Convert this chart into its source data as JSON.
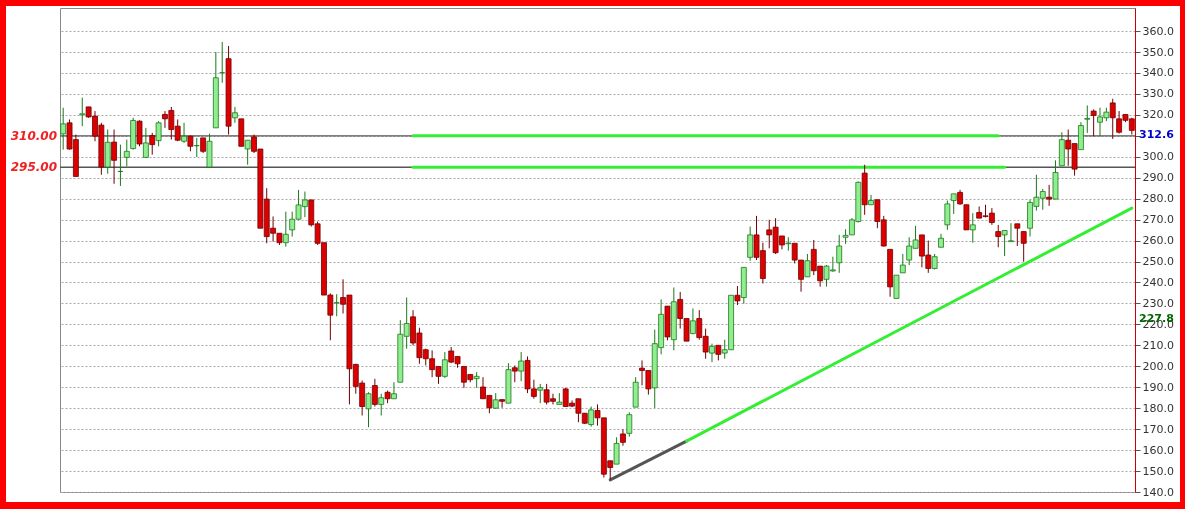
{
  "chart_data": {
    "type": "candlestick",
    "categories": [
      null,
      null,
      null,
      null,
      null,
      null,
      null,
      null,
      null,
      null,
      null,
      null,
      null,
      null,
      null,
      null,
      null,
      null,
      null,
      null,
      null,
      null,
      null,
      null,
      null,
      null,
      null,
      null,
      null,
      null,
      null,
      null,
      null,
      null,
      null,
      null,
      null,
      null,
      null,
      null,
      null,
      null,
      null,
      null,
      null,
      null,
      null,
      null,
      null,
      null,
      null,
      null,
      null,
      null,
      null,
      null,
      null,
      null,
      null,
      null,
      null,
      null,
      null,
      null,
      null,
      null,
      null,
      null,
      null,
      null,
      null,
      null,
      null,
      null,
      null,
      null,
      null,
      null,
      null,
      null,
      null,
      null,
      null,
      null,
      null,
      null,
      null,
      null,
      null,
      null,
      null,
      null,
      null,
      null,
      null,
      null,
      null,
      null,
      null,
      null,
      null,
      null,
      null,
      null,
      null,
      null,
      null,
      null,
      null,
      null,
      null,
      null,
      null,
      null,
      null,
      null,
      null,
      null,
      null,
      null,
      null,
      null,
      null,
      null,
      null,
      null,
      null,
      null,
      null,
      null,
      null,
      null,
      null,
      null,
      null,
      null,
      null,
      null,
      null,
      null,
      null,
      null,
      null,
      null,
      null,
      null,
      null,
      null,
      null,
      null,
      null,
      null,
      null,
      null,
      null,
      null,
      null,
      null,
      null,
      null,
      null,
      null,
      null,
      null,
      null,
      null,
      null,
      null,
      null
    ],
    "ohlc": [
      [
        310.9,
        323.4,
        303.4,
        315.7
      ],
      [
        316.2,
        317.8,
        303.4,
        303.7
      ],
      [
        308.2,
        310.6,
        290.6,
        290.6
      ],
      [
        320,
        328.2,
        314.6,
        320.5
      ],
      [
        323.8,
        323.8,
        318.6,
        319
      ],
      [
        319.4,
        321.8,
        307.4,
        309.8
      ],
      [
        315.1,
        316.2,
        291.4,
        295.1
      ],
      [
        295.1,
        313,
        291.9,
        306.9
      ],
      [
        307,
        313,
        287.1,
        298.3
      ],
      [
        293,
        305.8,
        286.1,
        293
      ],
      [
        299.7,
        308.2,
        295.4,
        302.6
      ],
      [
        303.9,
        318.6,
        303.4,
        317.3
      ],
      [
        317,
        317.4,
        305,
        306.1
      ],
      [
        299.7,
        313.8,
        299.4,
        306.6
      ],
      [
        310.1,
        311.4,
        301,
        305.8
      ],
      [
        307.7,
        317,
        305,
        316.2
      ],
      [
        320.2,
        321.8,
        313.8,
        318.1
      ],
      [
        322.1,
        323.8,
        308.2,
        313
      ],
      [
        314.6,
        317.8,
        307.4,
        307.9
      ],
      [
        307.4,
        316.2,
        306.6,
        309.8
      ],
      [
        309.8,
        310.1,
        302.6,
        305
      ],
      [
        305.3,
        309,
        299.9,
        305.3
      ],
      [
        309,
        309,
        301.8,
        302.6
      ],
      [
        295.1,
        311,
        295.1,
        307.4
      ],
      [
        313.8,
        350,
        313.8,
        337.7
      ],
      [
        340.1,
        354.8,
        335.3,
        340.1
      ],
      [
        346.8,
        352.9,
        310.6,
        314.6
      ],
      [
        318.6,
        323.8,
        316.2,
        321
      ],
      [
        318.1,
        318.1,
        305,
        305
      ],
      [
        303.7,
        307.9,
        296.2,
        307.9
      ],
      [
        309.5,
        310.6,
        301.8,
        302.6
      ],
      [
        303.7,
        303.7,
        265.9,
        265.9
      ],
      [
        279.8,
        285,
        258.7,
        261.9
      ],
      [
        265.9,
        271.5,
        259.5,
        263.5
      ],
      [
        263.5,
        263.5,
        257.9,
        259
      ],
      [
        259,
        273.8,
        257.1,
        263
      ],
      [
        265.1,
        273.8,
        261.9,
        270.2
      ],
      [
        270.2,
        284.2,
        269.9,
        277
      ],
      [
        276.2,
        283.4,
        271.2,
        279.4
      ],
      [
        279.4,
        279.4,
        266.7,
        267.5
      ],
      [
        268,
        269.1,
        257.9,
        258.7
      ],
      [
        259,
        259,
        234,
        234
      ],
      [
        234,
        234.8,
        212.4,
        224.4
      ],
      [
        230.3,
        234.4,
        223.9,
        230.3
      ],
      [
        232.8,
        241.5,
        225.2,
        229.6
      ],
      [
        234,
        234,
        181.8,
        198.8
      ],
      [
        200.9,
        201.2,
        186.9,
        190.4
      ],
      [
        192,
        193.2,
        176.5,
        180.8
      ],
      [
        179.7,
        187.6,
        170.9,
        186.9
      ],
      [
        190.8,
        194,
        180.8,
        181.8
      ],
      [
        181.8,
        186.9,
        176.5,
        185
      ],
      [
        187.6,
        188.4,
        182.4,
        184.5
      ],
      [
        184.5,
        192.4,
        184.5,
        186.9
      ],
      [
        192.4,
        222,
        192.4,
        215.3
      ],
      [
        214.3,
        232.8,
        208.4,
        220.4
      ],
      [
        223.6,
        226.8,
        210,
        211.1
      ],
      [
        215.9,
        218.4,
        201.2,
        204.1
      ],
      [
        207.9,
        208.4,
        200.4,
        203.6
      ],
      [
        203.6,
        207.6,
        194.8,
        198.4
      ],
      [
        199.9,
        199.9,
        191.6,
        195.2
      ],
      [
        195.2,
        206.8,
        194.5,
        203.1
      ],
      [
        207.3,
        209.2,
        201.5,
        202
      ],
      [
        204.7,
        204.7,
        199.3,
        201.2
      ],
      [
        199.9,
        199.9,
        189.7,
        192.4
      ],
      [
        196.1,
        196.1,
        192.4,
        193.6
      ],
      [
        194.1,
        197.2,
        189.7,
        195.2
      ],
      [
        190.1,
        194.8,
        184.5,
        184.5
      ],
      [
        186.1,
        186.1,
        177.6,
        180.2
      ],
      [
        180,
        187.2,
        179.7,
        184
      ],
      [
        184.1,
        184.1,
        180.2,
        183.3
      ],
      [
        182.4,
        201.5,
        182.4,
        198.4
      ],
      [
        199.3,
        200.4,
        192.4,
        197.7
      ],
      [
        197.7,
        206.8,
        192.9,
        202.5
      ],
      [
        202.8,
        204.7,
        187.2,
        189.2
      ],
      [
        189.2,
        193.6,
        184.5,
        185.6
      ],
      [
        188.6,
        191.6,
        182.4,
        189.8
      ],
      [
        188.8,
        191.6,
        181.8,
        182.9
      ],
      [
        184.5,
        186.9,
        181.8,
        183.3
      ],
      [
        181.8,
        187.2,
        181.8,
        182.9
      ],
      [
        189.2,
        189.7,
        180.8,
        180.8
      ],
      [
        182.4,
        183.7,
        180.5,
        181
      ],
      [
        184.5,
        184.5,
        173.3,
        177.6
      ],
      [
        177.6,
        177.6,
        172.5,
        172.8
      ],
      [
        172.2,
        180.8,
        171.2,
        179.2
      ],
      [
        178.9,
        181.8,
        171.7,
        175.4
      ],
      [
        175.4,
        175.4,
        146.9,
        148.5
      ],
      [
        154.9,
        154.9,
        146.1,
        151.7
      ],
      [
        153.3,
        166.1,
        153.3,
        163.2
      ],
      [
        167.7,
        170,
        162.1,
        163.7
      ],
      [
        168,
        178,
        166.4,
        176.9
      ],
      [
        180.5,
        194.8,
        180.5,
        192.4
      ],
      [
        199.1,
        202.8,
        190.9,
        198
      ],
      [
        198,
        198,
        186.5,
        189.2
      ],
      [
        189.7,
        217.5,
        180.1,
        210.8
      ],
      [
        208.9,
        231.9,
        205.7,
        224.8
      ],
      [
        228.7,
        228.7,
        212.4,
        214
      ],
      [
        212.7,
        237.6,
        207.6,
        230.8
      ],
      [
        231.9,
        235.5,
        218,
        222.8
      ],
      [
        222.8,
        222.8,
        212,
        212
      ],
      [
        215.6,
        227.6,
        215.3,
        221.7
      ],
      [
        222.8,
        226.8,
        212.7,
        213.7
      ],
      [
        214.3,
        218,
        203.6,
        206.8
      ],
      [
        206.3,
        210.8,
        202,
        209.5
      ],
      [
        210,
        210,
        202.8,
        205.7
      ],
      [
        206.3,
        212.7,
        203.6,
        207.9
      ],
      [
        207.9,
        233.9,
        207.9,
        233.9
      ],
      [
        233.9,
        238.3,
        229.2,
        231.2
      ],
      [
        232.8,
        247.2,
        229.9,
        247.2
      ],
      [
        252,
        266.7,
        250.4,
        262.7
      ],
      [
        262.7,
        271.8,
        250.7,
        252
      ],
      [
        255.2,
        259,
        239.5,
        241.9
      ],
      [
        265.1,
        269.9,
        256.3,
        262.7
      ],
      [
        266.4,
        270.7,
        253.6,
        254.2
      ],
      [
        262.2,
        262.2,
        255.8,
        257.9
      ],
      [
        258.5,
        261.6,
        255.2,
        258.8
      ],
      [
        258.7,
        258.7,
        249.1,
        250.7
      ],
      [
        250.7,
        250.7,
        235.6,
        241.5
      ],
      [
        242.7,
        253.6,
        242.7,
        250.4
      ],
      [
        255.8,
        260.3,
        243.5,
        245.6
      ],
      [
        247.8,
        247.8,
        238,
        240.8
      ],
      [
        241.5,
        248.3,
        238,
        247.8
      ],
      [
        245.5,
        252.3,
        245.1,
        246
      ],
      [
        249.4,
        262.7,
        244.6,
        257.4
      ],
      [
        261.6,
        265.4,
        258.4,
        262.5
      ],
      [
        262.7,
        270.7,
        262.7,
        269.9
      ],
      [
        269.1,
        288.2,
        268.6,
        287.8
      ],
      [
        292.2,
        296.2,
        272.3,
        277.1
      ],
      [
        277.1,
        281.8,
        277,
        279.1
      ],
      [
        279.5,
        279.5,
        265.9,
        269.1
      ],
      [
        269.9,
        271.8,
        257.1,
        257.4
      ],
      [
        255.8,
        255.8,
        233.2,
        237.9
      ],
      [
        232.4,
        243.5,
        232.4,
        243.5
      ],
      [
        244.6,
        253.6,
        244.6,
        248.3
      ],
      [
        250.7,
        261.6,
        248.3,
        257.4
      ],
      [
        256.3,
        267,
        256.3,
        260.3
      ],
      [
        262.7,
        262.7,
        247.2,
        252.6
      ],
      [
        253.1,
        260,
        244.6,
        246.7
      ],
      [
        246.7,
        253.6,
        246.2,
        252.3
      ],
      [
        256.8,
        263.2,
        256.8,
        261.1
      ],
      [
        267.5,
        279.1,
        265.1,
        277.5
      ],
      [
        279.1,
        282.3,
        272.7,
        282.3
      ],
      [
        283,
        284.2,
        277.1,
        277.5
      ],
      [
        277.1,
        277.1,
        265.1,
        265.1
      ],
      [
        265.1,
        273.1,
        259,
        267.5
      ],
      [
        273.4,
        276.3,
        270.7,
        270.7
      ],
      [
        271.8,
        277.1,
        271,
        271.5
      ],
      [
        273.1,
        275.5,
        267.5,
        268.6
      ],
      [
        264.3,
        267.5,
        256.8,
        261.9
      ],
      [
        262.7,
        264.8,
        252.6,
        264.8
      ],
      [
        259.5,
        268.3,
        259.5,
        259.9
      ],
      [
        268,
        268,
        257.4,
        265.9
      ],
      [
        264.3,
        264.3,
        249.9,
        258.7
      ],
      [
        265.9,
        279.5,
        261.9,
        278.2
      ],
      [
        276.3,
        291.4,
        274.3,
        280.7
      ],
      [
        280.2,
        284.6,
        274.7,
        283.4
      ],
      [
        280.7,
        286.6,
        276.6,
        279.8
      ],
      [
        279.8,
        298.3,
        279.8,
        292.5
      ],
      [
        295.7,
        311.7,
        295.7,
        308.2
      ],
      [
        307.9,
        313,
        295.7,
        303.7
      ],
      [
        306.3,
        306.3,
        291,
        294.1
      ],
      [
        303.4,
        316.5,
        303.4,
        314.9
      ],
      [
        317.9,
        324.5,
        311.4,
        318.3
      ],
      [
        321.8,
        322.6,
        309.8,
        319.7
      ],
      [
        316.5,
        323.4,
        309.8,
        319
      ],
      [
        318.6,
        323.4,
        317,
        321.3
      ],
      [
        325.7,
        327.7,
        308.5,
        318.6
      ],
      [
        318.1,
        321.8,
        311.1,
        311.7
      ],
      [
        320.2,
        320.2,
        316.5,
        317.4
      ],
      [
        318.1,
        318.6,
        310.6,
        312.6
      ]
    ],
    "series": [
      {
        "type": "line",
        "color": "#33ee33",
        "values": [
          null,
          null,
          null,
          null,
          null,
          null,
          null,
          null,
          null,
          null,
          null,
          null,
          null,
          null,
          null,
          null,
          null,
          null,
          null,
          null,
          null,
          null,
          null,
          null,
          null,
          null,
          null,
          null,
          null,
          null,
          null,
          null,
          null,
          null,
          null,
          null,
          null,
          null,
          null,
          null,
          null,
          null,
          null,
          null,
          null,
          null,
          null,
          null,
          null,
          null,
          null,
          null,
          null,
          null,
          null,
          310,
          null,
          null,
          null,
          null,
          null,
          null,
          null,
          null,
          null,
          null,
          null,
          null,
          null,
          null,
          null,
          null,
          null,
          null,
          null,
          null,
          null,
          null,
          null,
          null,
          null,
          null,
          null,
          null,
          null,
          null,
          null,
          null,
          null,
          null,
          null,
          null,
          null,
          null,
          null,
          null,
          null,
          null,
          null,
          null,
          null,
          null,
          null,
          null,
          null,
          null,
          null,
          null,
          null,
          null,
          null,
          null,
          null,
          null,
          null,
          null,
          null,
          null,
          null,
          null,
          null,
          null,
          null,
          null,
          null,
          null,
          null,
          null,
          null,
          null,
          null,
          null,
          null,
          null,
          null,
          null,
          null,
          null,
          null,
          null,
          null,
          null,
          null,
          null,
          null,
          null,
          null,
          310,
          null,
          null,
          null,
          null,
          null,
          null,
          null,
          null,
          null,
          null,
          null,
          null,
          null,
          null,
          null,
          null,
          null,
          null,
          null,
          null,
          null
        ]
      },
      {
        "type": "line",
        "color": "#33ee33",
        "values": [
          null,
          null,
          null,
          null,
          null,
          null,
          null,
          null,
          null,
          null,
          null,
          null,
          null,
          null,
          null,
          null,
          null,
          null,
          null,
          null,
          null,
          null,
          null,
          null,
          null,
          null,
          null,
          null,
          null,
          null,
          null,
          null,
          null,
          null,
          null,
          null,
          null,
          null,
          null,
          null,
          null,
          null,
          null,
          null,
          null,
          null,
          null,
          null,
          null,
          null,
          null,
          null,
          null,
          null,
          null,
          295,
          null,
          null,
          null,
          null,
          null,
          null,
          null,
          null,
          null,
          null,
          null,
          null,
          null,
          null,
          null,
          null,
          null,
          null,
          null,
          null,
          null,
          null,
          null,
          null,
          null,
          null,
          null,
          null,
          null,
          null,
          null,
          null,
          null,
          null,
          null,
          null,
          null,
          null,
          null,
          null,
          null,
          null,
          null,
          null,
          null,
          null,
          null,
          null,
          null,
          null,
          null,
          null,
          null,
          null,
          null,
          null,
          null,
          null,
          null,
          null,
          null,
          null,
          null,
          null,
          null,
          null,
          null,
          null,
          null,
          null,
          null,
          null,
          null,
          null,
          null,
          null,
          null,
          null,
          null,
          null,
          null,
          null,
          null,
          null,
          null,
          null,
          null,
          null,
          null,
          null,
          null,
          null,
          295,
          null,
          null,
          null,
          null,
          null,
          null,
          null,
          null,
          null,
          null,
          null,
          null,
          null,
          null,
          null,
          null,
          null,
          null,
          null,
          null
        ]
      },
      {
        "type": "line",
        "color": "#555555",
        "values": [
          null,
          null,
          null,
          null,
          null,
          null,
          null,
          null,
          null,
          null,
          null,
          null,
          null,
          null,
          null,
          null,
          null,
          null,
          null,
          null,
          null,
          null,
          null,
          null,
          null,
          null,
          null,
          null,
          null,
          null,
          null,
          null,
          null,
          null,
          null,
          null,
          null,
          null,
          null,
          null,
          null,
          null,
          null,
          null,
          null,
          null,
          null,
          null,
          null,
          null,
          null,
          null,
          null,
          null,
          null,
          null,
          null,
          null,
          null,
          null,
          null,
          null,
          null,
          null,
          null,
          null,
          null,
          null,
          null,
          null,
          null,
          null,
          null,
          null,
          null,
          null,
          null,
          null,
          null,
          null,
          null,
          null,
          null,
          null,
          null,
          null,
          145.8,
          null,
          null,
          null,
          null,
          null,
          null,
          null,
          null,
          null,
          null,
          null,
          164.3,
          null,
          null,
          null,
          null,
          null,
          null,
          null,
          null,
          null,
          null,
          null,
          null,
          null,
          null,
          null,
          null,
          null,
          null,
          null,
          null,
          null,
          null,
          null,
          null,
          null,
          null,
          null,
          null,
          null,
          null,
          null,
          null,
          null,
          null,
          null,
          null,
          null,
          null,
          null,
          null,
          null,
          null,
          null,
          null,
          null,
          null,
          null,
          null,
          null,
          null,
          null,
          null,
          null,
          null,
          null,
          null,
          null,
          null,
          null,
          null,
          null,
          null,
          null,
          null,
          null,
          null,
          null,
          null,
          null,
          null
        ]
      },
      {
        "type": "line",
        "color": "#33ee33",
        "values": [
          null,
          null,
          null,
          null,
          null,
          null,
          null,
          null,
          null,
          null,
          null,
          null,
          null,
          null,
          null,
          null,
          null,
          null,
          null,
          null,
          null,
          null,
          null,
          null,
          null,
          null,
          null,
          null,
          null,
          null,
          null,
          null,
          null,
          null,
          null,
          null,
          null,
          null,
          null,
          null,
          null,
          null,
          null,
          null,
          null,
          null,
          null,
          null,
          null,
          null,
          null,
          null,
          null,
          null,
          null,
          null,
          null,
          null,
          null,
          null,
          null,
          null,
          null,
          null,
          null,
          null,
          null,
          null,
          null,
          null,
          null,
          null,
          null,
          null,
          null,
          null,
          null,
          null,
          null,
          null,
          null,
          null,
          null,
          null,
          null,
          null,
          null,
          null,
          null,
          null,
          null,
          null,
          null,
          null,
          null,
          null,
          null,
          null,
          164.3,
          null,
          null,
          null,
          null,
          null,
          null,
          null,
          null,
          null,
          null,
          null,
          null,
          null,
          null,
          null,
          null,
          null,
          null,
          null,
          null,
          null,
          null,
          null,
          null,
          null,
          null,
          null,
          null,
          null,
          null,
          null,
          null,
          null,
          null,
          null,
          null,
          null,
          null,
          null,
          null,
          null,
          null,
          null,
          null,
          null,
          null,
          null,
          null,
          null,
          null,
          null,
          null,
          null,
          null,
          null,
          null,
          null,
          null,
          null,
          null,
          null,
          null,
          null,
          null,
          null,
          null,
          null,
          null,
          null,
          275.5
        ]
      }
    ],
    "ylim": [
      140,
      371
    ],
    "yticks": [
      {
        "value": 140,
        "label": "140.0"
      },
      {
        "value": 150,
        "label": "150.0"
      },
      {
        "value": 160,
        "label": "160.0"
      },
      {
        "value": 170,
        "label": "170.0"
      },
      {
        "value": 180,
        "label": "180.0"
      },
      {
        "value": 190,
        "label": "190.0"
      },
      {
        "value": 200,
        "label": "200.0"
      },
      {
        "value": 210,
        "label": "210.0"
      },
      {
        "value": 220,
        "label": "220.0"
      },
      {
        "value": 230,
        "label": "230.0"
      },
      {
        "value": 240,
        "label": "240.0"
      },
      {
        "value": 250,
        "label": "250.0"
      },
      {
        "value": 260,
        "label": "260.0"
      },
      {
        "value": 270,
        "label": "270.0"
      },
      {
        "value": 280,
        "label": "280.0"
      },
      {
        "value": 290,
        "label": "290.0"
      },
      {
        "value": 300,
        "label": "300.0"
      },
      {
        "value": 310,
        "label": null
      },
      {
        "value": 320,
        "label": "320.0"
      },
      {
        "value": 330,
        "label": "330.0"
      },
      {
        "value": 340,
        "label": "340.0"
      },
      {
        "value": 350,
        "label": "350.0"
      },
      {
        "value": 360,
        "label": "360.0"
      }
    ],
    "ref_lines": [
      {
        "axis": "y",
        "value": 310,
        "label": "310.00",
        "color": "#555555"
      },
      {
        "axis": "y",
        "value": 295,
        "label": "295.00",
        "color": "#555555"
      }
    ],
    "annotations": [
      "312.6",
      "227.8"
    ],
    "grid": "y",
    "tick_labels": "y"
  }
}
